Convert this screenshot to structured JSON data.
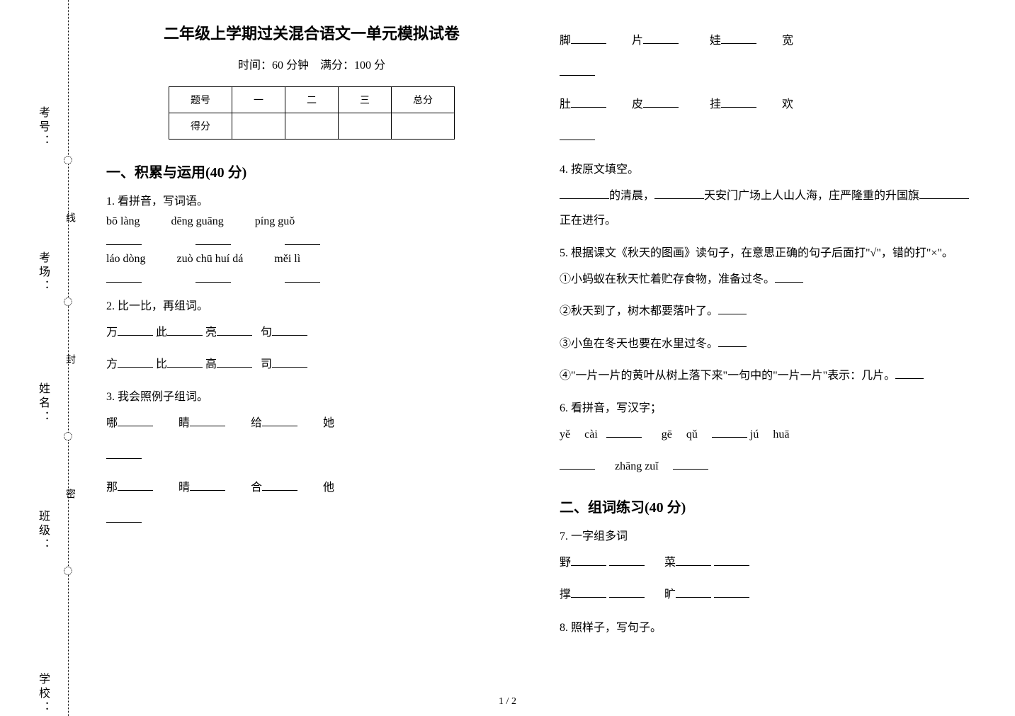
{
  "binding": {
    "labels": {
      "kaohao": "考号：",
      "kaochang": "考场：",
      "xingming": "姓名：",
      "banji": "班级：",
      "xuexiao": "学校："
    },
    "cutline_chars": [
      "线",
      "封",
      "密"
    ],
    "label_top_positions": [
      150,
      355,
      540,
      720,
      950
    ],
    "circle_top_positions": [
      220,
      420,
      610,
      800
    ],
    "cut_top_positions": [
      300,
      500,
      690
    ]
  },
  "title": "二年级上学期过关混合语文一单元模拟试卷",
  "subtitle": "时间：60 分钟　满分：100 分",
  "score_table": {
    "headers": [
      "题号",
      "一",
      "二",
      "三",
      "总分"
    ],
    "rows": [
      [
        "得分",
        "",
        "",
        "",
        ""
      ]
    ]
  },
  "section1": {
    "head": "一、积累与运用(40 分)",
    "q1": {
      "title": "1. 看拼音，写词语。",
      "row1": [
        "bō làng",
        "dēng guāng",
        "píng guǒ"
      ],
      "row2": [
        "láo dòng",
        "zuò chū huí dá",
        "měi lì"
      ]
    },
    "q2": {
      "title": "2. 比一比，再组词。",
      "r1": [
        "万",
        "此",
        "亮",
        "句"
      ],
      "r2": [
        "方",
        "比",
        "高",
        "司"
      ]
    },
    "q3": {
      "title": "3. 我会照例子组词。",
      "r1": [
        "哪",
        "睛",
        "给",
        "她"
      ],
      "r2": [
        "那",
        "晴",
        "合",
        "他"
      ],
      "r3": [
        "脚",
        "片",
        "娃",
        "宽"
      ],
      "r4": [
        "肚",
        "皮",
        "挂",
        "欢"
      ]
    },
    "q4": {
      "title": "4. 按原文填空。",
      "text_a": "的清晨，",
      "text_b": "天安门广场上人山人海，庄严隆重的升国旗",
      "text_c": "正在进行。"
    },
    "q5": {
      "title": "5. 根据课文《秋天的图画》读句子，在意思正确的句子后面打\"√\"，错的打\"×\"。",
      "items": [
        "①小蚂蚁在秋天忙着贮存食物，准备过冬。",
        "②秋天到了，树木都要落叶了。",
        "③小鱼在冬天也要在水里过冬。",
        "④\"一片一片的黄叶从树上落下来\"一句中的\"一片一片\"表示：几片。"
      ]
    },
    "q6": {
      "title": "6. 看拼音，写汉字；",
      "r1": [
        "yě",
        "cài",
        "",
        "gē",
        "qǔ",
        "",
        "jú",
        "huā"
      ],
      "r2": [
        "",
        "zhāng zuǐ",
        ""
      ]
    }
  },
  "section2": {
    "head": "二、组词练习(40 分)",
    "q7": {
      "title": "7. 一字组多词",
      "r1": [
        "野",
        "菜"
      ],
      "r2": [
        "撑",
        "旷"
      ]
    },
    "q8": {
      "title": "8. 照样子，写句子。"
    }
  },
  "pagenum": "1 / 2",
  "colors": {
    "text": "#000000",
    "bg": "#ffffff"
  }
}
